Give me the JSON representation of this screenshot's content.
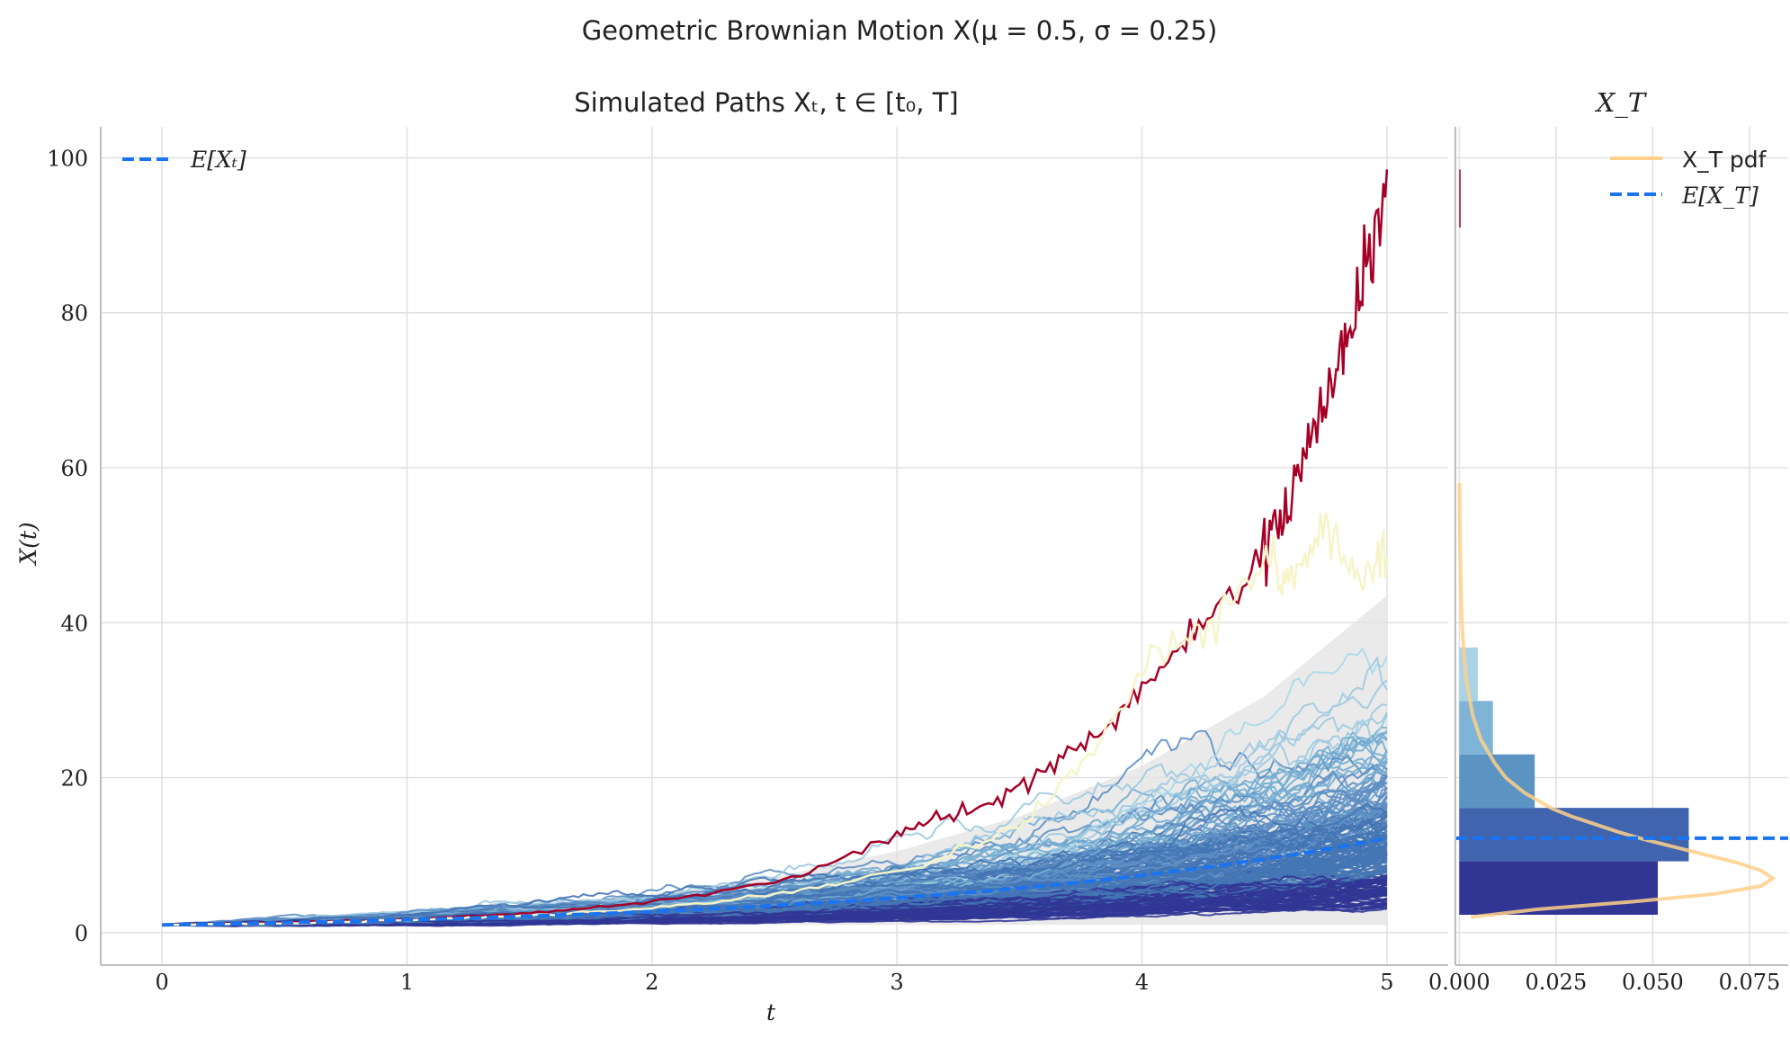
{
  "suptitle": "Geometric Brownian Motion X(μ = 0.5, σ = 0.25)",
  "chart_data": [
    {
      "type": "line",
      "title": "Simulated Paths Xₜ, t ∈ [t₀, T]",
      "xlabel": "t",
      "ylabel": "X(t)",
      "xlim": [
        -0.25,
        5.25
      ],
      "ylim": [
        -4.2,
        104
      ],
      "xticks": [
        0,
        1,
        2,
        3,
        4,
        5
      ],
      "yticks": [
        0,
        20,
        40,
        60,
        80,
        100
      ],
      "grid": true,
      "legend": {
        "position": "top-left",
        "entries": [
          {
            "label": "E[Xₜ]",
            "style": "dashed",
            "color": "#1f77f7"
          }
        ]
      },
      "mu": 0.5,
      "sigma": 0.25,
      "x0": 1,
      "expectation": {
        "name": "E[Xₜ]",
        "color": "#1a73f0",
        "t": [
          0,
          0.5,
          1,
          1.5,
          2,
          2.5,
          3,
          3.5,
          4,
          4.5,
          5
        ],
        "values": [
          1.0,
          1.28,
          1.65,
          2.12,
          2.72,
          3.49,
          4.48,
          5.75,
          7.39,
          9.49,
          12.18
        ]
      },
      "band": {
        "color": "#e3e3e3",
        "t": [
          0,
          0.5,
          1,
          1.5,
          2,
          2.5,
          3,
          3.5,
          4,
          4.5,
          5
        ],
        "upper": [
          1.0,
          1.5,
          2.3,
          3.4,
          5.0,
          7.2,
          10.5,
          15.0,
          21.5,
          30.5,
          43.5
        ],
        "lower": [
          1.0,
          1.0,
          1.0,
          1.0,
          1.0,
          1.0,
          1.0,
          1.0,
          1.0,
          1.0,
          1.0
        ]
      },
      "highlight_paths": [
        {
          "color": "#a50026",
          "t": [
            0,
            0.5,
            1,
            1.5,
            2,
            2.5,
            3,
            3.25,
            3.5,
            3.75,
            4,
            4.25,
            4.5,
            4.6,
            4.7,
            4.8,
            4.9,
            5
          ],
          "values": [
            1.0,
            1.3,
            1.7,
            2.5,
            4.0,
            6.5,
            13.0,
            15.0,
            19.0,
            24.0,
            32.0,
            40.0,
            49.0,
            55.0,
            66.0,
            72.0,
            84.0,
            98.5
          ]
        },
        {
          "color": "#f6f4c8",
          "t": [
            0,
            0.5,
            1,
            1.5,
            2,
            2.5,
            3,
            3.5,
            3.75,
            4,
            4.25,
            4.5,
            4.6,
            4.75,
            4.9,
            5
          ],
          "values": [
            1.0,
            1.2,
            1.6,
            2.2,
            3.2,
            5.0,
            8.0,
            14.0,
            22.0,
            34.0,
            38.0,
            48.0,
            46.0,
            51.0,
            46.0,
            48.5
          ]
        }
      ],
      "path_colors": [
        "#313695",
        "#313695",
        "#313695",
        "#4575b4",
        "#4575b4",
        "#5e8fc4",
        "#74add1",
        "#9ecae1",
        "#abd9e9"
      ],
      "path_endpoint_range": [
        2.0,
        42.0
      ],
      "path_count": 200
    },
    {
      "type": "bar",
      "orientation": "horizontal",
      "title": "X_T",
      "xlim": [
        -0.001,
        0.085
      ],
      "xticks": [
        0.0,
        0.025,
        0.05,
        0.075
      ],
      "xtick_labels": [
        "0.000",
        "0.025",
        "0.050",
        "0.075"
      ],
      "shared_ylim": [
        -4.2,
        104
      ],
      "legend": {
        "position": "top-right",
        "entries": [
          {
            "label": "X_T pdf",
            "style": "solid",
            "color": "#ffd08a"
          },
          {
            "label": "E[X_T]",
            "style": "dashed",
            "color": "#1f77f7"
          }
        ]
      },
      "bins": [
        {
          "from": 2.3,
          "to": 9.2,
          "density": 0.0513,
          "color": "#313695"
        },
        {
          "from": 9.2,
          "to": 16.1,
          "density": 0.0593,
          "color": "#4064ad"
        },
        {
          "from": 16.1,
          "to": 23.0,
          "density": 0.0195,
          "color": "#5b93c3"
        },
        {
          "from": 23.0,
          "to": 29.9,
          "density": 0.0087,
          "color": "#7fb4d7"
        },
        {
          "from": 29.9,
          "to": 36.8,
          "density": 0.0048,
          "color": "#a9d4e6"
        },
        {
          "from": 36.8,
          "to": 43.7,
          "density": 0.0,
          "color": "#c4e3ef"
        },
        {
          "from": 43.7,
          "to": 50.6,
          "density": 0.0,
          "color": "#e0f2f8"
        },
        {
          "from": 91.0,
          "to": 98.5,
          "density": 0.0003,
          "color": "#a50026"
        }
      ],
      "pdf": {
        "name": "X_T pdf",
        "color": "#ffd08a",
        "x": [
          2,
          3,
          4,
          5,
          6,
          7,
          8,
          9,
          10,
          11,
          12,
          13,
          14,
          15,
          16,
          18,
          20,
          22,
          25,
          28,
          32,
          36,
          40,
          45,
          50,
          55,
          58
        ],
        "density": [
          0.003,
          0.02,
          0.045,
          0.066,
          0.078,
          0.081,
          0.078,
          0.072,
          0.064,
          0.056,
          0.048,
          0.041,
          0.035,
          0.029,
          0.024,
          0.017,
          0.012,
          0.009,
          0.0055,
          0.0035,
          0.002,
          0.0012,
          0.0007,
          0.0004,
          0.0002,
          0.0001,
          5e-05
        ]
      },
      "mean_line": {
        "name": "E[X_T]",
        "value": 12.18,
        "color": "#1a73f0"
      }
    }
  ]
}
